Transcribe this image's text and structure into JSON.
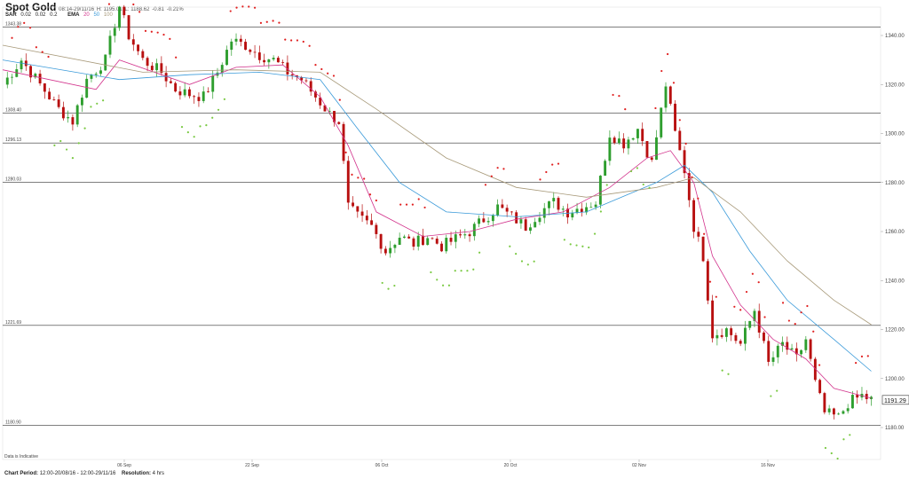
{
  "header": {
    "title": "Spot Gold",
    "period": "08:14-29/11/16",
    "high": "H: 1195.01",
    "low": "L: 1188.62",
    "change": "-0.81",
    "change_pct": "-0.21%"
  },
  "indicators": {
    "sar_label": "SAR",
    "sar_params": [
      "0.02",
      "0.02",
      "0.2"
    ],
    "ema_label": "EMA",
    "ema_params": [
      "20",
      "50",
      "100"
    ],
    "ema_colors": [
      "#d2338c",
      "#3a9ad9",
      "#a89a7a"
    ]
  },
  "disclaimer": "Data is Indicative",
  "footer": {
    "chart_period_label": "Chart Period:",
    "chart_period_value": "12:00-20/08/16 - 12:00-29/11/16",
    "resolution_label": "Resolution:",
    "resolution_value": "4 hrs"
  },
  "colors": {
    "up": "#2e9e2e",
    "down": "#b80f0f",
    "sar_up": "#7ac943",
    "sar_down": "#e02020",
    "ema20": "#d2338c",
    "ema50": "#3a9ad9",
    "ema100": "#a89a7a"
  },
  "chart_data": {
    "type": "line",
    "title": "Spot Gold",
    "ylim": [
      1166,
      1360
    ],
    "y_ticks": [
      "1340.00",
      "1320.00",
      "1300.00",
      "1280.00",
      "1260.00",
      "1240.00",
      "1220.00",
      "1200.00",
      "1180.00"
    ],
    "x_ticks": [
      "06 Sep",
      "22 Sep",
      "06 Oct",
      "20 Oct",
      "02 Nov",
      "16 Nov"
    ],
    "horizontal_levels": [
      {
        "label": "1343.38",
        "value": 1343.38
      },
      {
        "label": "1308.40",
        "value": 1308.4
      },
      {
        "label": "1296.13",
        "value": 1296.13
      },
      {
        "label": "1280.03",
        "value": 1280.03
      },
      {
        "label": "1221.69",
        "value": 1221.69
      },
      {
        "label": "1180.90",
        "value": 1180.9
      }
    ],
    "last_price": "1191.29",
    "close_path": [
      [
        0,
        1320
      ],
      [
        4,
        1330
      ],
      [
        8,
        1320
      ],
      [
        12,
        1310
      ],
      [
        15,
        1305
      ],
      [
        18,
        1322
      ],
      [
        22,
        1330
      ],
      [
        24,
        1345
      ],
      [
        25,
        1352
      ],
      [
        27,
        1340
      ],
      [
        30,
        1330
      ],
      [
        34,
        1325
      ],
      [
        37,
        1318
      ],
      [
        40,
        1316
      ],
      [
        43,
        1315
      ],
      [
        46,
        1325
      ],
      [
        49,
        1338
      ],
      [
        52,
        1336
      ],
      [
        55,
        1332
      ],
      [
        58,
        1330
      ],
      [
        61,
        1325
      ],
      [
        64,
        1322
      ],
      [
        67,
        1315
      ],
      [
        70,
        1308
      ],
      [
        72,
        1305
      ],
      [
        74,
        1270
      ],
      [
        76,
        1266
      ],
      [
        79,
        1262
      ],
      [
        82,
        1252
      ],
      [
        85,
        1258
      ],
      [
        88,
        1255
      ],
      [
        91,
        1258
      ],
      [
        94,
        1254
      ],
      [
        97,
        1257
      ],
      [
        100,
        1260
      ],
      [
        103,
        1265
      ],
      [
        106,
        1270
      ],
      [
        109,
        1266
      ],
      [
        112,
        1262
      ],
      [
        115,
        1268
      ],
      [
        118,
        1272
      ],
      [
        121,
        1268
      ],
      [
        124,
        1270
      ],
      [
        127,
        1272
      ],
      [
        130,
        1300
      ],
      [
        133,
        1296
      ],
      [
        136,
        1302
      ],
      [
        139,
        1288
      ],
      [
        142,
        1320
      ],
      [
        144,
        1300
      ],
      [
        146,
        1285
      ],
      [
        148,
        1262
      ],
      [
        150,
        1250
      ],
      [
        152,
        1218
      ],
      [
        155,
        1220
      ],
      [
        158,
        1214
      ],
      [
        161,
        1228
      ],
      [
        164,
        1206
      ],
      [
        167,
        1214
      ],
      [
        170,
        1208
      ],
      [
        172,
        1216
      ],
      [
        174,
        1198
      ],
      [
        176,
        1186
      ],
      [
        179,
        1184
      ],
      [
        181,
        1190
      ],
      [
        184,
        1193
      ],
      [
        186,
        1191.29
      ]
    ],
    "series": [
      {
        "name": "EMA 20",
        "values": [
          [
            0,
            1326
          ],
          [
            20,
            1318
          ],
          [
            25,
            1330
          ],
          [
            40,
            1320
          ],
          [
            50,
            1327
          ],
          [
            60,
            1328
          ],
          [
            68,
            1315
          ],
          [
            74,
            1295
          ],
          [
            80,
            1268
          ],
          [
            90,
            1258
          ],
          [
            100,
            1260
          ],
          [
            110,
            1265
          ],
          [
            120,
            1268
          ],
          [
            130,
            1278
          ],
          [
            138,
            1290
          ],
          [
            143,
            1293
          ],
          [
            148,
            1280
          ],
          [
            152,
            1250
          ],
          [
            158,
            1230
          ],
          [
            165,
            1216
          ],
          [
            172,
            1208
          ],
          [
            178,
            1196
          ],
          [
            186,
            1192
          ]
        ]
      },
      {
        "name": "EMA 50",
        "values": [
          [
            0,
            1330
          ],
          [
            25,
            1322
          ],
          [
            40,
            1324
          ],
          [
            55,
            1325
          ],
          [
            68,
            1322
          ],
          [
            76,
            1302
          ],
          [
            85,
            1280
          ],
          [
            95,
            1268
          ],
          [
            110,
            1266
          ],
          [
            125,
            1268
          ],
          [
            140,
            1280
          ],
          [
            146,
            1287
          ],
          [
            152,
            1276
          ],
          [
            160,
            1252
          ],
          [
            168,
            1232
          ],
          [
            178,
            1216
          ],
          [
            186,
            1203
          ]
        ]
      },
      {
        "name": "EMA 100",
        "values": [
          [
            0,
            1336
          ],
          [
            30,
            1325
          ],
          [
            50,
            1326
          ],
          [
            68,
            1325
          ],
          [
            80,
            1310
          ],
          [
            95,
            1290
          ],
          [
            110,
            1278
          ],
          [
            125,
            1274
          ],
          [
            140,
            1278
          ],
          [
            148,
            1282
          ],
          [
            158,
            1268
          ],
          [
            168,
            1248
          ],
          [
            178,
            1232
          ],
          [
            186,
            1222
          ]
        ]
      }
    ],
    "x_range": [
      0,
      188
    ]
  }
}
